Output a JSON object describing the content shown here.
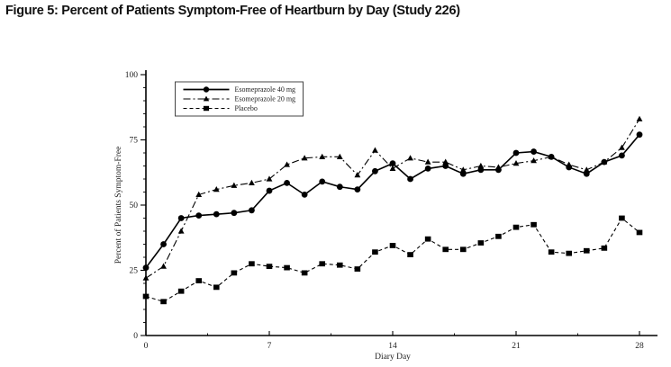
{
  "title": "Figure 5: Percent of Patients Symptom-Free of Heartburn by Day (Study 226)",
  "chart_data": {
    "type": "line",
    "title": "",
    "xlabel": "Diary Day",
    "ylabel": "Percent of Patients Symptom-Free",
    "xlim": [
      0,
      28
    ],
    "ylim": [
      0,
      100
    ],
    "x_major_ticks": [
      0,
      7,
      14,
      21,
      28
    ],
    "x_minor_ticks": [
      3.5,
      10.5,
      17.5,
      24.5
    ],
    "y_major_ticks": [
      0,
      25,
      50,
      75,
      100
    ],
    "y_minor_step": 5,
    "grid": false,
    "legend_position": "top-left-inside",
    "line_color": "#000000",
    "x": [
      0,
      1,
      2,
      3,
      4,
      5,
      6,
      7,
      8,
      9,
      10,
      11,
      12,
      13,
      14,
      15,
      16,
      17,
      18,
      19,
      20,
      21,
      22,
      23,
      24,
      25,
      26,
      27,
      28
    ],
    "series": [
      {
        "name": "Esomeprazole 40 mg",
        "marker": "circle",
        "line": "solid",
        "color": "#000000",
        "values": [
          26,
          35,
          45,
          46,
          46.5,
          47,
          48,
          55.5,
          58.5,
          54,
          59,
          57,
          56,
          63,
          66,
          60,
          64,
          65,
          62,
          63.5,
          63.5,
          70,
          70.5,
          68.5,
          64.5,
          62,
          66.5,
          69,
          77
        ]
      },
      {
        "name": "Esomeprazole 20 mg",
        "marker": "triangle",
        "line": "dash-dot",
        "color": "#000000",
        "values": [
          22,
          26.5,
          40,
          54,
          56,
          57.5,
          58.5,
          60,
          65.5,
          68,
          68.5,
          68.5,
          61.5,
          71,
          64,
          68,
          66.5,
          66.5,
          63.5,
          65,
          64.5,
          66,
          67,
          68.5,
          65.5,
          63.5,
          66.5,
          72,
          83
        ]
      },
      {
        "name": "Placebo",
        "marker": "square",
        "line": "dashed",
        "color": "#000000",
        "values": [
          15,
          13,
          17,
          21,
          18.5,
          24,
          27.5,
          26.5,
          26,
          24,
          27.5,
          27,
          25.5,
          32,
          34.5,
          31,
          37,
          33,
          33,
          35.5,
          38,
          41.5,
          42.5,
          32,
          31.5,
          32.5,
          33.5,
          45,
          39.5
        ]
      }
    ]
  }
}
